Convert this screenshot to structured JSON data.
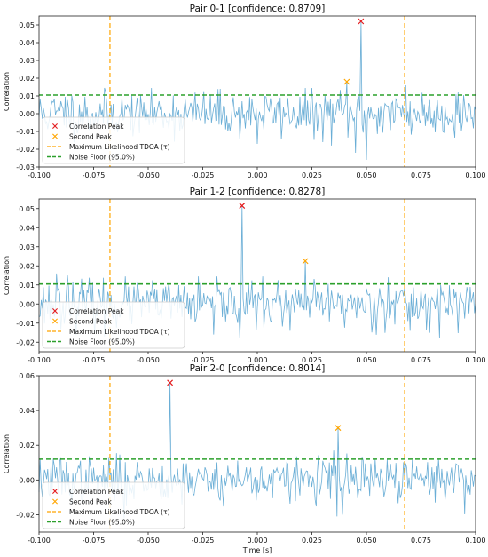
{
  "chart_data": [
    {
      "type": "line",
      "title": "Pair 0-1 [confidence: 0.8709]",
      "xlabel": "",
      "ylabel": "Correlation",
      "xlim": [
        -0.1,
        0.1
      ],
      "ylim": [
        -0.03,
        0.055
      ],
      "xticks": [
        -0.1,
        -0.075,
        -0.05,
        -0.025,
        0.0,
        0.025,
        0.05,
        0.075,
        0.1
      ],
      "xtick_labels": [
        "-0.100",
        "-0.075",
        "-0.050",
        "-0.025",
        "0.000",
        "0.025",
        "0.050",
        "0.075",
        "0.100"
      ],
      "yticks": [
        -0.03,
        -0.02,
        -0.01,
        0.0,
        0.01,
        0.02,
        0.03,
        0.04,
        0.05
      ],
      "ytick_labels": [
        "-0.03",
        "-0.02",
        "-0.01",
        "0.00",
        "0.01",
        "0.02",
        "0.03",
        "0.04",
        "0.05"
      ],
      "noise_floor": 0.0105,
      "tdoa_lines": [
        -0.0675,
        0.0675
      ],
      "correlation_peak": {
        "x": 0.0475,
        "y": 0.052
      },
      "second_peak": {
        "x": 0.041,
        "y": 0.018
      },
      "series_color": "#6aaed6",
      "noise_sigma": 0.0085,
      "seed": 11,
      "spikes": [
        [
          -0.088,
          0.0095
        ],
        [
          -0.055,
          0.009
        ],
        [
          0.0,
          -0.017
        ],
        [
          0.03,
          -0.016
        ],
        [
          0.045,
          -0.022
        ],
        [
          0.05,
          -0.026
        ],
        [
          0.068,
          0.016
        ],
        [
          0.092,
          0.012
        ]
      ],
      "legend": [
        "Correlation Peak",
        "Second Peak",
        "Maximum Likelihood TDOA (τ)",
        "Noise Floor (95.0%)"
      ],
      "legend_position": "lower-left",
      "grid": false
    },
    {
      "type": "line",
      "title": "Pair 1-2 [confidence: 0.8278]",
      "xlabel": "",
      "ylabel": "Correlation",
      "xlim": [
        -0.1,
        0.1
      ],
      "ylim": [
        -0.025,
        0.055
      ],
      "xticks": [
        -0.1,
        -0.075,
        -0.05,
        -0.025,
        0.0,
        0.025,
        0.05,
        0.075,
        0.1
      ],
      "xtick_labels": [
        "-0.100",
        "-0.075",
        "-0.050",
        "-0.025",
        "0.000",
        "0.025",
        "0.050",
        "0.075",
        "0.100"
      ],
      "yticks": [
        -0.02,
        -0.01,
        0.0,
        0.01,
        0.02,
        0.03,
        0.04,
        0.05
      ],
      "ytick_labels": [
        "-0.02",
        "-0.01",
        "0.00",
        "0.01",
        "0.02",
        "0.03",
        "0.04",
        "0.05"
      ],
      "noise_floor": 0.0105,
      "tdoa_lines": [
        -0.0675,
        0.0675
      ],
      "correlation_peak": {
        "x": -0.007,
        "y": 0.0515
      },
      "second_peak": {
        "x": 0.022,
        "y": 0.0225
      },
      "series_color": "#6aaed6",
      "noise_sigma": 0.008,
      "seed": 23,
      "spikes": [
        [
          -0.092,
          0.016
        ],
        [
          -0.087,
          0.015
        ],
        [
          -0.07,
          -0.017
        ],
        [
          -0.02,
          -0.016
        ],
        [
          -0.008,
          -0.018
        ],
        [
          0.015,
          -0.014
        ],
        [
          0.06,
          0.014
        ],
        [
          0.07,
          -0.014
        ]
      ],
      "legend": [
        "Correlation Peak",
        "Second Peak",
        "Maximum Likelihood TDOA (τ)",
        "Noise Floor (95.0%)"
      ],
      "legend_position": "lower-left",
      "grid": false
    },
    {
      "type": "line",
      "title": "Pair 2-0 [confidence: 0.8014]",
      "xlabel": "Time [s]",
      "ylabel": "Correlation",
      "xlim": [
        -0.1,
        0.1
      ],
      "ylim": [
        -0.03,
        0.06
      ],
      "xticks": [
        -0.1,
        -0.075,
        -0.05,
        -0.025,
        0.0,
        0.025,
        0.05,
        0.075,
        0.1
      ],
      "xtick_labels": [
        "-0.100",
        "-0.075",
        "-0.050",
        "-0.025",
        "0.000",
        "0.025",
        "0.050",
        "0.075",
        "0.100"
      ],
      "yticks": [
        -0.02,
        0.0,
        0.02,
        0.04,
        0.06
      ],
      "ytick_labels": [
        "-0.02",
        "0.00",
        "0.02",
        "0.04",
        "0.06"
      ],
      "noise_floor": 0.012,
      "tdoa_lines": [
        -0.0675,
        0.0675
      ],
      "correlation_peak": {
        "x": -0.04,
        "y": 0.056
      },
      "second_peak": {
        "x": 0.037,
        "y": 0.03
      },
      "series_color": "#6aaed6",
      "noise_sigma": 0.0085,
      "seed": 37,
      "spikes": [
        [
          -0.09,
          0.013
        ],
        [
          -0.061,
          -0.022
        ],
        [
          0.035,
          0.017
        ],
        [
          0.039,
          -0.02
        ],
        [
          0.0365,
          -0.021
        ],
        [
          0.083,
          0.012
        ]
      ],
      "legend": [
        "Correlation Peak",
        "Second Peak",
        "Maximum Likelihood TDOA (τ)",
        "Noise Floor (95.0%)"
      ],
      "legend_position": "lower-left",
      "grid": false
    }
  ]
}
